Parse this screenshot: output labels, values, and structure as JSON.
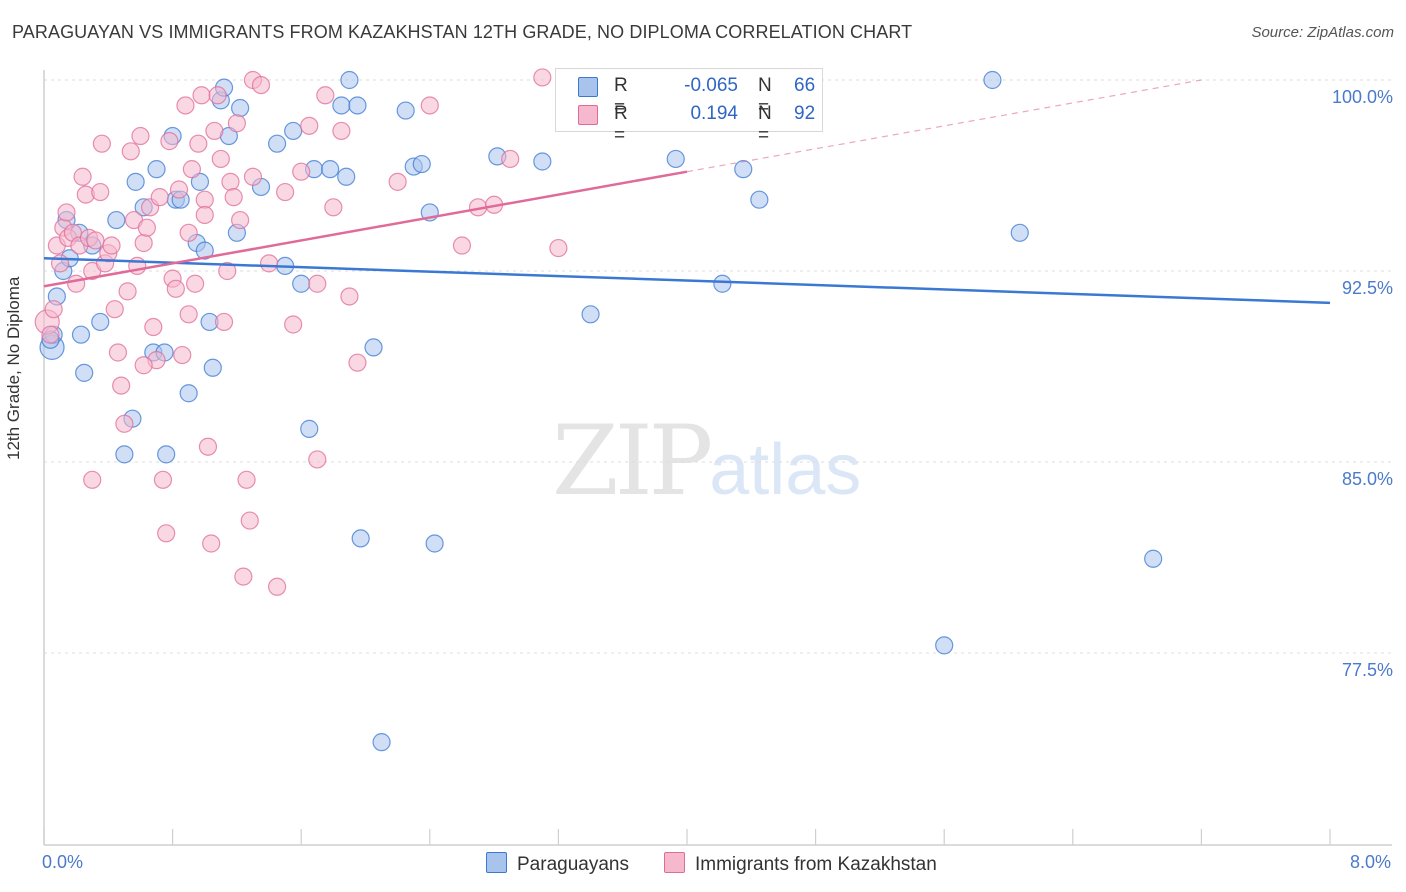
{
  "title": "PARAGUAYAN VS IMMIGRANTS FROM KAZAKHSTAN 12TH GRADE, NO DIPLOMA CORRELATION CHART",
  "source": "Source: ZipAtlas.com",
  "watermark": {
    "zip": "ZIP",
    "atlas": "atlas"
  },
  "legend": {
    "rows": [
      {
        "r_label": "R =",
        "r_value": "-0.065",
        "n_label": "N =",
        "n_value": "66"
      },
      {
        "r_label": "R =",
        "r_value": "0.194",
        "n_label": "N =",
        "n_value": "92"
      }
    ]
  },
  "colors": {
    "blue": "#3b78d4",
    "blue_fill": "#a9c4ec",
    "pink": "#e06b98",
    "pink_fill": "#f5b8cc",
    "grid": "#dddddd",
    "tick_text": "#4a7ac9"
  },
  "chart_data": {
    "type": "scatter",
    "title": "PARAGUAYAN VS IMMIGRANTS FROM KAZAKHSTAN 12TH GRADE, NO DIPLOMA CORRELATION CHART",
    "xlabel": "",
    "ylabel": "12th Grade, No Diploma",
    "xlim": [
      0,
      8
    ],
    "ylim": [
      71.5,
      101.5
    ],
    "x_tick_labels": [
      "0.0%",
      "8.0%"
    ],
    "y_ticks": [
      100,
      92.5,
      85,
      77.5
    ],
    "y_tick_labels": [
      "100.0%",
      "92.5%",
      "85.0%",
      "77.5%"
    ],
    "series": [
      {
        "name": "Paraguayans",
        "color": "blue",
        "r": -0.065,
        "n": 66,
        "trend": {
          "x": [
            0,
            8
          ],
          "y": [
            93.0,
            91.25
          ],
          "dash_from": null
        },
        "points": [
          [
            0.05,
            89.5
          ],
          [
            0.06,
            90.0
          ],
          [
            0.08,
            91.5
          ],
          [
            0.12,
            92.5
          ],
          [
            0.14,
            94.5
          ],
          [
            0.16,
            93.0
          ],
          [
            0.22,
            94.0
          ],
          [
            0.23,
            90.0
          ],
          [
            0.25,
            88.5
          ],
          [
            0.3,
            93.5
          ],
          [
            0.35,
            90.5
          ],
          [
            0.45,
            94.5
          ],
          [
            0.5,
            85.3
          ],
          [
            0.55,
            86.7
          ],
          [
            0.57,
            96.0
          ],
          [
            0.62,
            95.0
          ],
          [
            0.68,
            89.3
          ],
          [
            0.7,
            96.5
          ],
          [
            0.75,
            89.3
          ],
          [
            0.76,
            85.3
          ],
          [
            0.8,
            97.8
          ],
          [
            0.82,
            95.3
          ],
          [
            0.85,
            95.3
          ],
          [
            0.9,
            87.7
          ],
          [
            0.95,
            93.6
          ],
          [
            0.97,
            96.0
          ],
          [
            1.0,
            93.3
          ],
          [
            1.03,
            90.5
          ],
          [
            1.05,
            88.7
          ],
          [
            1.1,
            99.2
          ],
          [
            1.12,
            99.7
          ],
          [
            1.15,
            97.8
          ],
          [
            1.2,
            94.0
          ],
          [
            1.22,
            98.9
          ],
          [
            1.35,
            95.8
          ],
          [
            1.45,
            97.5
          ],
          [
            1.5,
            92.7
          ],
          [
            1.55,
            98.0
          ],
          [
            1.6,
            92.0
          ],
          [
            1.65,
            86.3
          ],
          [
            1.68,
            96.5
          ],
          [
            1.78,
            96.5
          ],
          [
            1.85,
            99.0
          ],
          [
            1.88,
            96.2
          ],
          [
            1.9,
            100.0
          ],
          [
            1.95,
            99.0
          ],
          [
            1.97,
            82.0
          ],
          [
            2.05,
            89.5
          ],
          [
            2.1,
            74.0
          ],
          [
            2.25,
            98.8
          ],
          [
            2.3,
            96.6
          ],
          [
            2.35,
            96.7
          ],
          [
            2.4,
            94.8
          ],
          [
            2.43,
            81.8
          ],
          [
            2.82,
            97.0
          ],
          [
            3.1,
            96.8
          ],
          [
            3.4,
            90.8
          ],
          [
            3.93,
            96.9
          ],
          [
            4.22,
            92.0
          ],
          [
            4.35,
            96.5
          ],
          [
            4.45,
            95.3
          ],
          [
            5.6,
            77.8
          ],
          [
            5.9,
            100.0
          ],
          [
            6.07,
            94.0
          ],
          [
            6.9,
            81.2
          ],
          [
            0.04,
            89.8
          ]
        ]
      },
      {
        "name": "Immigrants from Kazakhstan",
        "color": "pink",
        "r": 0.194,
        "n": 92,
        "trend": {
          "x": [
            0,
            7.2
          ],
          "y": [
            91.9,
            100.0
          ],
          "dash_from": 4.0
        },
        "points": [
          [
            0.02,
            90.5
          ],
          [
            0.04,
            90.0
          ],
          [
            0.06,
            91.0
          ],
          [
            0.08,
            93.5
          ],
          [
            0.1,
            92.8
          ],
          [
            0.12,
            94.2
          ],
          [
            0.14,
            94.8
          ],
          [
            0.15,
            93.8
          ],
          [
            0.18,
            94.0
          ],
          [
            0.2,
            92.0
          ],
          [
            0.22,
            93.5
          ],
          [
            0.24,
            96.2
          ],
          [
            0.26,
            95.5
          ],
          [
            0.28,
            93.8
          ],
          [
            0.3,
            92.5
          ],
          [
            0.32,
            93.7
          ],
          [
            0.35,
            95.6
          ],
          [
            0.38,
            92.8
          ],
          [
            0.4,
            93.2
          ],
          [
            0.42,
            93.5
          ],
          [
            0.44,
            91.0
          ],
          [
            0.46,
            89.3
          ],
          [
            0.48,
            88.0
          ],
          [
            0.5,
            86.5
          ],
          [
            0.52,
            91.7
          ],
          [
            0.54,
            97.2
          ],
          [
            0.56,
            94.5
          ],
          [
            0.58,
            92.7
          ],
          [
            0.6,
            97.8
          ],
          [
            0.62,
            93.6
          ],
          [
            0.64,
            94.2
          ],
          [
            0.66,
            95.0
          ],
          [
            0.68,
            90.3
          ],
          [
            0.7,
            89.0
          ],
          [
            0.72,
            95.4
          ],
          [
            0.74,
            84.3
          ],
          [
            0.76,
            82.2
          ],
          [
            0.78,
            97.6
          ],
          [
            0.8,
            92.2
          ],
          [
            0.82,
            91.8
          ],
          [
            0.84,
            95.7
          ],
          [
            0.86,
            89.2
          ],
          [
            0.88,
            99.0
          ],
          [
            0.9,
            90.8
          ],
          [
            0.92,
            96.5
          ],
          [
            0.94,
            92.0
          ],
          [
            0.96,
            97.5
          ],
          [
            0.98,
            99.4
          ],
          [
            1.0,
            95.3
          ],
          [
            1.02,
            85.6
          ],
          [
            1.04,
            81.8
          ],
          [
            1.06,
            98.0
          ],
          [
            1.08,
            99.4
          ],
          [
            1.1,
            96.9
          ],
          [
            1.12,
            90.5
          ],
          [
            1.14,
            92.5
          ],
          [
            1.16,
            96.0
          ],
          [
            1.18,
            95.4
          ],
          [
            1.2,
            98.3
          ],
          [
            1.22,
            94.5
          ],
          [
            1.24,
            80.5
          ],
          [
            1.26,
            84.3
          ],
          [
            1.28,
            82.7
          ],
          [
            1.3,
            100.0
          ],
          [
            1.35,
            99.8
          ],
          [
            1.4,
            92.8
          ],
          [
            1.45,
            80.1
          ],
          [
            1.5,
            95.6
          ],
          [
            1.55,
            90.4
          ],
          [
            1.6,
            96.4
          ],
          [
            1.65,
            98.2
          ],
          [
            1.7,
            85.1
          ],
          [
            1.75,
            99.4
          ],
          [
            1.8,
            95.0
          ],
          [
            1.85,
            98.0
          ],
          [
            1.9,
            91.5
          ],
          [
            1.95,
            88.9
          ],
          [
            2.2,
            96.0
          ],
          [
            2.4,
            99.0
          ],
          [
            2.6,
            93.5
          ],
          [
            2.7,
            95.0
          ],
          [
            2.8,
            95.1
          ],
          [
            2.9,
            96.9
          ],
          [
            3.1,
            100.1
          ],
          [
            3.2,
            93.4
          ],
          [
            0.3,
            84.3
          ],
          [
            0.36,
            97.5
          ],
          [
            0.62,
            88.8
          ],
          [
            1.0,
            94.7
          ],
          [
            1.3,
            96.2
          ],
          [
            1.7,
            92.0
          ],
          [
            0.9,
            94.0
          ]
        ]
      }
    ]
  }
}
